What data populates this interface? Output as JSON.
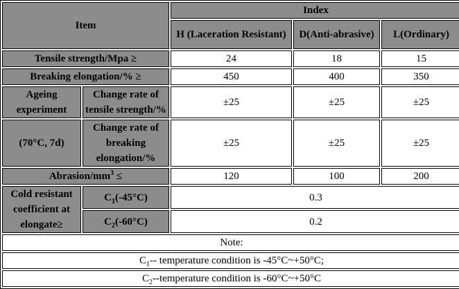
{
  "header": {
    "item": "Item",
    "index": "Index",
    "col_h": "H (Laceration Resistant)",
    "col_d": "D(Anti-abrasive)",
    "col_l": "L(Ordinary)"
  },
  "rows": {
    "tensile": {
      "label": "Tensile strength/Mpa ≥",
      "h": "24",
      "d": "18",
      "l": "15"
    },
    "elongation": {
      "label": "Breaking elongation/% ≥",
      "h": "450",
      "d": "400",
      "l": "350"
    },
    "ageing": {
      "label_1": "Ageing experiment",
      "label_2": "(70°C, 7d)",
      "tensile_label": "Change rate of tensile strength/%",
      "tensile_h": "±25",
      "tensile_d": "±25",
      "tensile_l": "±25",
      "elong_label": "Change rate of breaking elongation/%",
      "elong_h": "±25",
      "elong_d": "±25",
      "elong_l": "±25"
    },
    "abrasion": {
      "label": "Abrasion/mm",
      "sup": "3",
      "suffix": " ≤",
      "h": "120",
      "d": "100",
      "l": "200"
    },
    "cold": {
      "label": "Cold resistant coefficient at elongate≥",
      "c1_pre": "C",
      "c1_sub": "1",
      "c1_post": "(-45°C)",
      "c1_value": "0.3",
      "c2_pre": "C",
      "c2_sub": "2",
      "c2_post": "(-60°C)",
      "c2_value": "0.2"
    }
  },
  "notes": {
    "title": "Note:",
    "line1_pre": "C",
    "line1_sub": "1",
    "line1_post": "-- temperature condition is -45°C~+50°C;",
    "line2_pre": "C",
    "line2_sub": "2",
    "line2_post": "--temperature condition is -60°C~+50°C"
  },
  "colors": {
    "header_bg": "#8c8c8c",
    "cell_bg": "#ffffff",
    "border": "#000000"
  }
}
